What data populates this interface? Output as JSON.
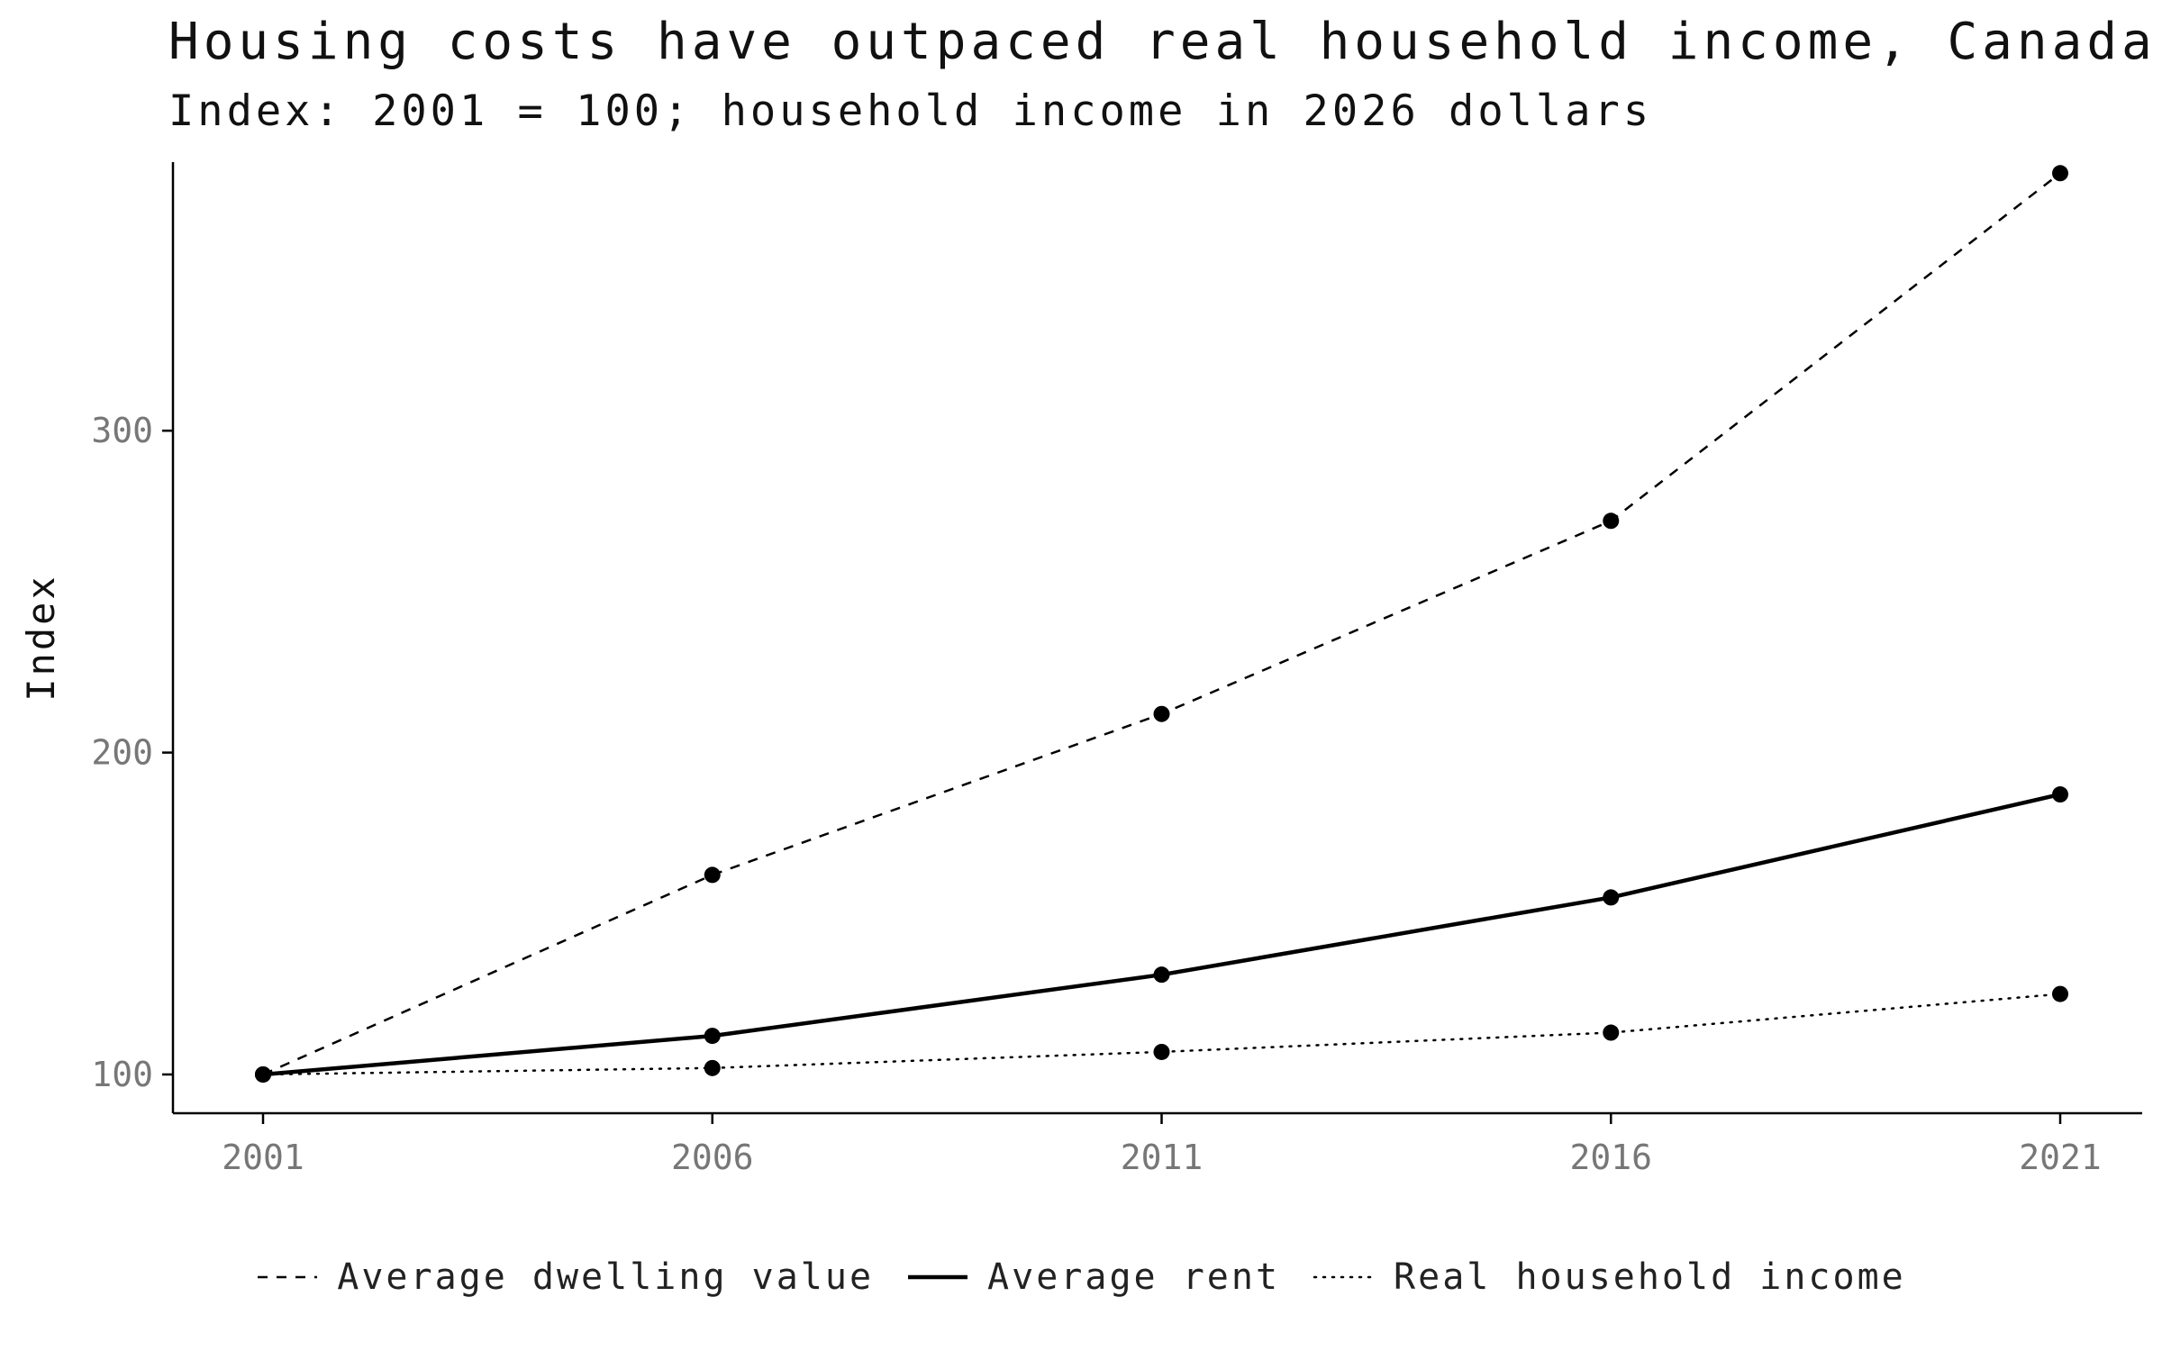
{
  "chart_data": {
    "type": "line",
    "title": "Housing costs have outpaced real household income, Canada",
    "subtitle": "Index: 2001 = 100; household income in 2026 dollars",
    "xlabel": "",
    "ylabel": "Index",
    "categories": [
      "2001",
      "2006",
      "2011",
      "2016",
      "2021"
    ],
    "ylim": [
      86,
      384
    ],
    "yticks": [
      100,
      200,
      300
    ],
    "grid": false,
    "legend_position": "bottom",
    "series": [
      {
        "name": "Average dwelling value",
        "line_style": "dashed",
        "color": "#000000",
        "values": [
          100,
          162,
          212,
          272,
          380
        ]
      },
      {
        "name": "Average rent",
        "line_style": "solid",
        "color": "#000000",
        "values": [
          100,
          112,
          131,
          155,
          187
        ]
      },
      {
        "name": "Real household income",
        "line_style": "dotted",
        "color": "#000000",
        "values": [
          100,
          102,
          107,
          113,
          125
        ]
      }
    ]
  }
}
